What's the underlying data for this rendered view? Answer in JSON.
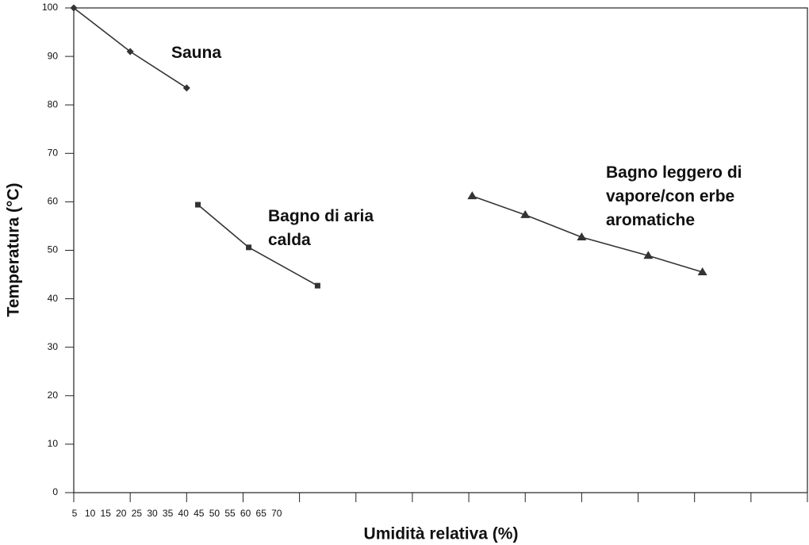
{
  "chart_data": {
    "type": "line",
    "x_label": "Umidità relativa (%)",
    "y_label": "Temperatura (°C)",
    "xlim": [
      5,
      70
    ],
    "xticks": [
      5,
      10,
      15,
      20,
      25,
      30,
      35,
      40,
      45,
      50,
      55,
      60,
      65,
      70
    ],
    "ylim": [
      0,
      100
    ],
    "yticks": [
      0,
      10,
      20,
      30,
      40,
      50,
      60,
      70,
      80,
      90,
      100
    ],
    "grid": false,
    "series": [
      {
        "name": "Sauna",
        "color": "#333333",
        "marker": "diamond",
        "x": [
          5,
          10,
          15
        ],
        "values": [
          100,
          91,
          83.5
        ]
      },
      {
        "name": "Bagno di aria calda",
        "color": "#333333",
        "marker": "square",
        "x": [
          16,
          20.5,
          26.6
        ],
        "values": [
          59.4,
          50.6,
          42.7
        ]
      },
      {
        "name": "Bagno leggero di vapore/con erbe aromatiche",
        "color": "#333333",
        "marker": "triangle",
        "x": [
          40.3,
          45,
          50,
          55.9,
          60.7
        ],
        "values": [
          61.2,
          57.3,
          52.7,
          48.9,
          45.5
        ]
      }
    ]
  }
}
